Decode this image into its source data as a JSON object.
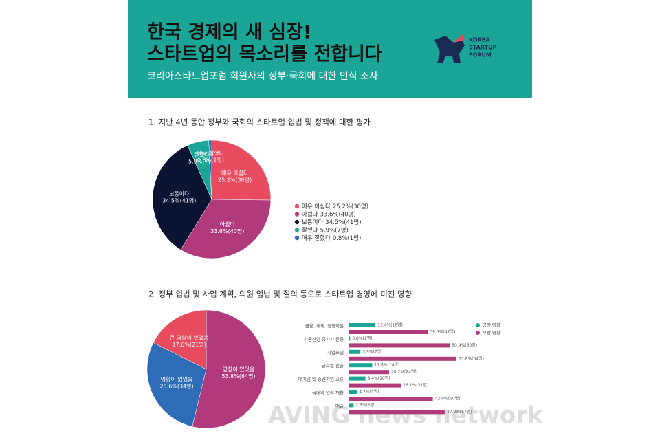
{
  "header": {
    "title_lines": [
      "한국 경제의 새 심장!",
      "스타트업의 목소리를 전합니다"
    ],
    "subtitle": "코리아스타트업포럼 회원사의 정부·국회에 대한 인식 조사",
    "logo": [
      "KOREA",
      "STARTUP",
      "FORUM"
    ]
  },
  "watermark": "AVING news network",
  "chart_data": [
    {
      "type": "pie",
      "title": "1. 지난 4년 동안 정부와 국회의 스타트업 입법 및 정책에 대한 평가",
      "categories": [
        "매우 아쉽다",
        "아쉽다",
        "보통이다",
        "잘했다",
        "매우 잘했다"
      ],
      "values": [
        25.2,
        33.6,
        34.5,
        5.9,
        0.8
      ],
      "value_labels": [
        "25.2%(30명)",
        "33.6%(40명)",
        "34.5%(41명)",
        "5.9%(7명)",
        "0.8%(1명)"
      ],
      "colors": [
        "#e84a5f",
        "#b03a7c",
        "#0b1433",
        "#1ba597",
        "#2e6cb7"
      ],
      "legend": "right"
    },
    {
      "type": "pie",
      "title": "2. 정부 입법 및 사업 계획, 의원 입법 및 질의 등으로 스타트업 경영에 미친 영향",
      "categories": [
        "영향이 있었음",
        "영향이 없었음",
        "큰 영향이 있었음"
      ],
      "values": [
        53.8,
        28.6,
        17.6
      ],
      "value_labels": [
        "53.8%(64명)",
        "28.6%(34명)",
        "17.6%(21명)"
      ],
      "colors": [
        "#b03a7c",
        "#2e6cb7",
        "#e84a5f"
      ]
    },
    {
      "type": "bar",
      "orientation": "horizontal",
      "categories": [
        "금융, 세제, 경영지원",
        "기존산업 종사자 갈등",
        "사업모델",
        "글로벌 진출",
        "대기업 및 중견기업 교류",
        "국내외 인력 채용",
        "매출"
      ],
      "series": [
        {
          "name": "긍정 영향",
          "color": "#1ba597",
          "values": [
            13.4,
            0.8,
            5.9,
            11.8,
            8.4,
            4.2,
            2.5
          ],
          "value_labels": [
            "13.4%(16명)",
            "0.8%(1명)",
            "5.9%(7명)",
            "11.8%(14명)",
            "8.4%(10명)",
            "4.2%(5명)",
            "2.5%(3명)"
          ]
        },
        {
          "name": "부정 영향",
          "color": "#b03a7c",
          "values": [
            39.5,
            50.4,
            53.8,
            20.2,
            26.1,
            42,
            47.9
          ],
          "value_labels": [
            "39.5%(47명)",
            "50.4%(60명)",
            "53.8%(64명)",
            "20.2%(24명)",
            "26.1%(31명)",
            "42.0%(50명)",
            "47.9%(57명)"
          ]
        }
      ],
      "legend": "upper right"
    }
  ]
}
